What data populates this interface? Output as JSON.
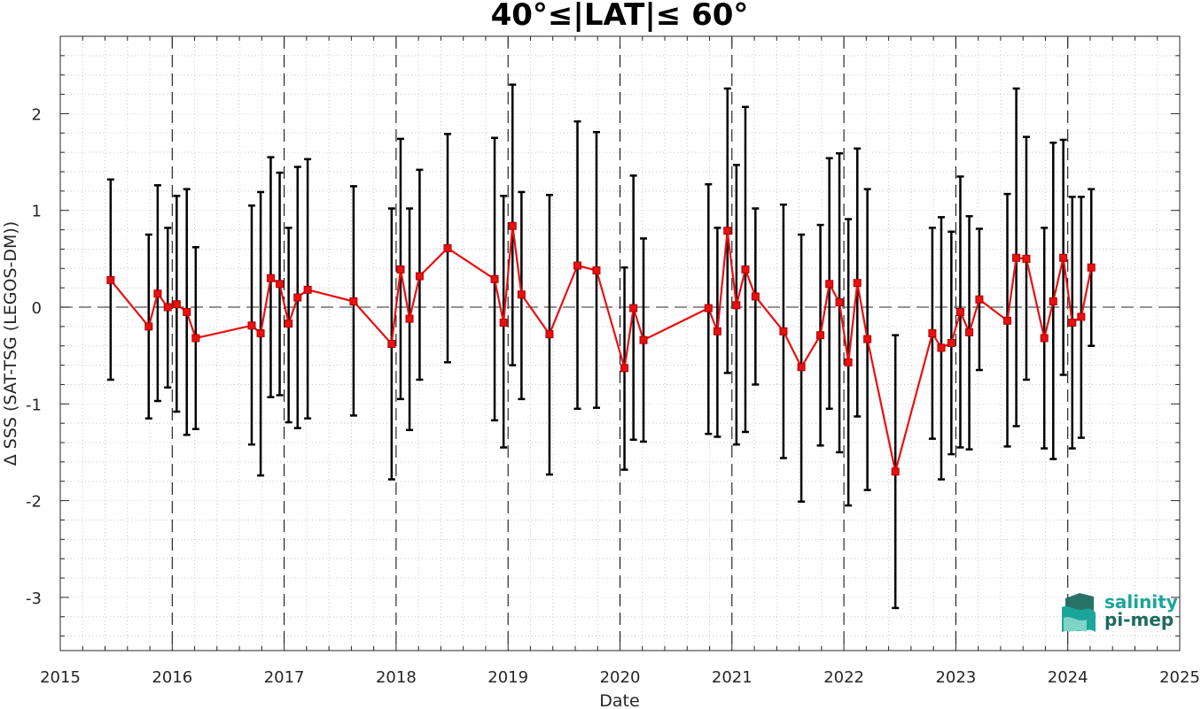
{
  "chart_data": {
    "type": "line",
    "title": "40°≤|LAT|≤ 60°",
    "xlabel": "Date",
    "ylabel": "Δ SSS (SAT-TSG (LEGOS-DM))",
    "xlim": [
      2015,
      2025
    ],
    "ylim": [
      -3.55,
      2.8
    ],
    "x_ticks": [
      "2015",
      "2016",
      "2017",
      "2018",
      "2019",
      "2020",
      "2021",
      "2022",
      "2023",
      "2024",
      "2025"
    ],
    "y_ticks": [
      "-3",
      "-2",
      "-1",
      "0",
      "1",
      "2"
    ],
    "year_dividers": [
      2016,
      2017,
      2018,
      2019,
      2020,
      2021,
      2022,
      2023,
      2024
    ],
    "zero_line": 0,
    "grid": "minor dotted",
    "series": [
      {
        "color": "#e81010",
        "marker": "square",
        "errorbar_color": "#000000",
        "points": [
          {
            "x": 2015.45,
            "y": 0.28,
            "lo": -0.75,
            "hi": 1.32
          },
          {
            "x": 2015.79,
            "y": -0.2,
            "lo": -1.15,
            "hi": 0.75
          },
          {
            "x": 2015.87,
            "y": 0.14,
            "lo": -0.97,
            "hi": 1.26
          },
          {
            "x": 2015.96,
            "y": 0.0,
            "lo": -0.83,
            "hi": 0.82
          },
          {
            "x": 2016.04,
            "y": 0.03,
            "lo": -1.08,
            "hi": 1.15
          },
          {
            "x": 2016.13,
            "y": -0.05,
            "lo": -1.32,
            "hi": 1.22
          },
          {
            "x": 2016.21,
            "y": -0.32,
            "lo": -1.26,
            "hi": 0.62
          },
          {
            "x": 2016.71,
            "y": -0.19,
            "lo": -1.42,
            "hi": 1.05
          },
          {
            "x": 2016.79,
            "y": -0.27,
            "lo": -1.74,
            "hi": 1.19
          },
          {
            "x": 2016.88,
            "y": 0.3,
            "lo": -0.93,
            "hi": 1.55
          },
          {
            "x": 2016.96,
            "y": 0.24,
            "lo": -0.91,
            "hi": 1.39
          },
          {
            "x": 2017.04,
            "y": -0.17,
            "lo": -1.19,
            "hi": 0.82
          },
          {
            "x": 2017.12,
            "y": 0.1,
            "lo": -1.25,
            "hi": 1.45
          },
          {
            "x": 2017.21,
            "y": 0.18,
            "lo": -1.15,
            "hi": 1.53
          },
          {
            "x": 2017.62,
            "y": 0.06,
            "lo": -1.12,
            "hi": 1.25
          },
          {
            "x": 2017.96,
            "y": -0.38,
            "lo": -1.78,
            "hi": 1.02
          },
          {
            "x": 2018.04,
            "y": 0.39,
            "lo": -0.95,
            "hi": 1.74
          },
          {
            "x": 2018.12,
            "y": -0.12,
            "lo": -1.27,
            "hi": 1.02
          },
          {
            "x": 2018.21,
            "y": 0.32,
            "lo": -0.75,
            "hi": 1.42
          },
          {
            "x": 2018.46,
            "y": 0.61,
            "lo": -0.57,
            "hi": 1.79
          },
          {
            "x": 2018.88,
            "y": 0.29,
            "lo": -1.17,
            "hi": 1.75
          },
          {
            "x": 2018.96,
            "y": -0.16,
            "lo": -1.45,
            "hi": 1.15
          },
          {
            "x": 2019.04,
            "y": 0.84,
            "lo": -0.6,
            "hi": 2.3
          },
          {
            "x": 2019.12,
            "y": 0.13,
            "lo": -0.95,
            "hi": 1.19
          },
          {
            "x": 2019.37,
            "y": -0.28,
            "lo": -1.73,
            "hi": 1.16
          },
          {
            "x": 2019.62,
            "y": 0.43,
            "lo": -1.05,
            "hi": 1.92
          },
          {
            "x": 2019.79,
            "y": 0.38,
            "lo": -1.04,
            "hi": 1.81
          },
          {
            "x": 2020.04,
            "y": -0.63,
            "lo": -1.68,
            "hi": 0.41
          },
          {
            "x": 2020.12,
            "y": -0.01,
            "lo": -1.37,
            "hi": 1.36
          },
          {
            "x": 2020.21,
            "y": -0.34,
            "lo": -1.39,
            "hi": 0.71
          },
          {
            "x": 2020.79,
            "y": -0.01,
            "lo": -1.31,
            "hi": 1.27
          },
          {
            "x": 2020.87,
            "y": -0.25,
            "lo": -1.34,
            "hi": 0.82
          },
          {
            "x": 2020.96,
            "y": 0.79,
            "lo": -0.68,
            "hi": 2.26
          },
          {
            "x": 2021.04,
            "y": 0.02,
            "lo": -1.42,
            "hi": 1.47
          },
          {
            "x": 2021.12,
            "y": 0.39,
            "lo": -1.29,
            "hi": 2.07
          },
          {
            "x": 2021.21,
            "y": 0.11,
            "lo": -0.8,
            "hi": 1.02
          },
          {
            "x": 2021.46,
            "y": -0.25,
            "lo": -1.56,
            "hi": 1.06
          },
          {
            "x": 2021.62,
            "y": -0.62,
            "lo": -2.01,
            "hi": 0.75
          },
          {
            "x": 2021.79,
            "y": -0.29,
            "lo": -1.43,
            "hi": 0.85
          },
          {
            "x": 2021.87,
            "y": 0.24,
            "lo": -1.05,
            "hi": 1.54
          },
          {
            "x": 2021.96,
            "y": 0.05,
            "lo": -1.5,
            "hi": 1.59
          },
          {
            "x": 2022.04,
            "y": -0.57,
            "lo": -2.05,
            "hi": 0.91
          },
          {
            "x": 2022.12,
            "y": 0.25,
            "lo": -1.13,
            "hi": 1.64
          },
          {
            "x": 2022.21,
            "y": -0.33,
            "lo": -1.89,
            "hi": 1.22
          },
          {
            "x": 2022.46,
            "y": -1.7,
            "lo": -3.11,
            "hi": -0.29
          },
          {
            "x": 2022.79,
            "y": -0.27,
            "lo": -1.36,
            "hi": 0.82
          },
          {
            "x": 2022.87,
            "y": -0.42,
            "lo": -1.78,
            "hi": 0.93
          },
          {
            "x": 2022.96,
            "y": -0.37,
            "lo": -1.52,
            "hi": 0.78
          },
          {
            "x": 2023.04,
            "y": -0.05,
            "lo": -1.45,
            "hi": 1.35
          },
          {
            "x": 2023.12,
            "y": -0.26,
            "lo": -1.47,
            "hi": 0.94
          },
          {
            "x": 2023.21,
            "y": 0.08,
            "lo": -0.65,
            "hi": 0.81
          },
          {
            "x": 2023.46,
            "y": -0.14,
            "lo": -1.44,
            "hi": 1.17
          },
          {
            "x": 2023.54,
            "y": 0.51,
            "lo": -1.23,
            "hi": 2.26
          },
          {
            "x": 2023.63,
            "y": 0.5,
            "lo": -0.75,
            "hi": 1.76
          },
          {
            "x": 2023.79,
            "y": -0.32,
            "lo": -1.46,
            "hi": 0.82
          },
          {
            "x": 2023.87,
            "y": 0.06,
            "lo": -1.57,
            "hi": 1.7
          },
          {
            "x": 2023.96,
            "y": 0.51,
            "lo": -0.7,
            "hi": 1.73
          },
          {
            "x": 2024.04,
            "y": -0.16,
            "lo": -1.46,
            "hi": 1.14
          },
          {
            "x": 2024.12,
            "y": -0.1,
            "lo": -1.35,
            "hi": 1.14
          },
          {
            "x": 2024.21,
            "y": 0.41,
            "lo": -0.4,
            "hi": 1.22
          }
        ]
      }
    ]
  },
  "logo": {
    "line1": "salinity",
    "line2": "pi-mep",
    "color_primary": "#1aa59a",
    "color_secondary": "#1d6b5e"
  }
}
